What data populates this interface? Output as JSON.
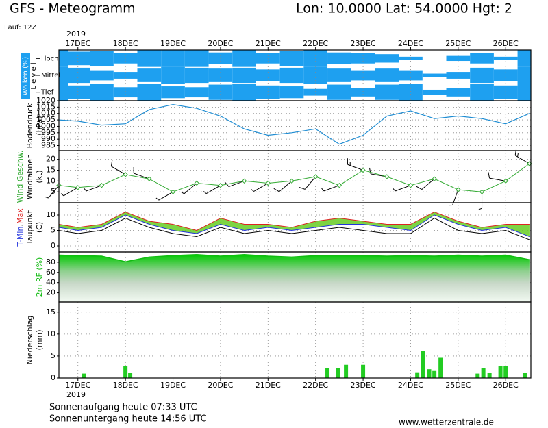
{
  "header": {
    "title": "GFS - Meteogramm",
    "location": "Lon: 10.0000 Lat: 54.0000 Hgt: 2",
    "run": "Lauf: 12Z",
    "year": "2019"
  },
  "footer": {
    "sunrise": "Sonnenaufgang heute 07:33 UTC",
    "sunset": "Sonnenuntergang heute 14:56 UTC",
    "url": "www.wetterzentrale.de"
  },
  "chart_data": [
    {
      "type": "cloud",
      "ylabel": "Wolken (%)",
      "level_label": "L e v e l",
      "x": [
        16.6,
        17,
        17.5,
        18,
        18.5,
        19,
        19.5,
        20,
        20.5,
        21,
        21.5,
        22,
        22.5,
        23,
        23.5,
        24,
        24.5,
        25,
        25.5,
        26,
        26.5
      ],
      "xlim": [
        16.6,
        26.53
      ],
      "xticks": [
        {
          "value": 17,
          "label": "17DEC"
        },
        {
          "value": 18,
          "label": "18DEC"
        },
        {
          "value": 19,
          "label": "19DEC"
        },
        {
          "value": 20,
          "label": "20DEC"
        },
        {
          "value": 21,
          "label": "21DEC"
        },
        {
          "value": 22,
          "label": "22DEC"
        },
        {
          "value": 23,
          "label": "23DEC"
        },
        {
          "value": 24,
          "label": "24DEC"
        },
        {
          "value": 25,
          "label": "25DEC"
        },
        {
          "value": 26,
          "label": "26DEC"
        }
      ],
      "ylim": [
        0,
        100
      ],
      "series": [
        {
          "name": "Hoch",
          "color": "#1ea0f0",
          "values": [
            100,
            80,
            90,
            60,
            100,
            100,
            100,
            70,
            100,
            60,
            90,
            100,
            70,
            60,
            50,
            20,
            0,
            30,
            60,
            20,
            100
          ]
        },
        {
          "name": "Mittel",
          "color": "#1ea0f0",
          "values": [
            100,
            90,
            60,
            40,
            80,
            100,
            90,
            80,
            90,
            70,
            90,
            100,
            80,
            60,
            80,
            60,
            20,
            40,
            90,
            70,
            100
          ]
        },
        {
          "name": "Tief",
          "color": "#1ea0f0",
          "values": [
            100,
            80,
            100,
            60,
            100,
            70,
            60,
            90,
            100,
            80,
            70,
            40,
            90,
            50,
            90,
            100,
            30,
            50,
            100,
            80,
            100
          ]
        }
      ]
    },
    {
      "type": "line",
      "ylabel": [
        "Bodendruck",
        "(hPa)"
      ],
      "color": "#1e8cd2",
      "x": [
        16.6,
        17,
        17.5,
        18,
        18.5,
        19,
        19.5,
        20,
        20.5,
        21,
        21.5,
        22,
        22.5,
        23,
        23.5,
        24,
        24.5,
        25,
        25.5,
        26,
        26.5
      ],
      "values": [
        1005,
        1004,
        1001,
        1002,
        1013,
        1017,
        1014,
        1008,
        998,
        993,
        995,
        998,
        986,
        993,
        1008,
        1012,
        1006,
        1008,
        1006,
        1002,
        1010
      ],
      "xlim": [
        16.6,
        26.53
      ],
      "xticks": [
        {
          "value": 17,
          "label": "17DEC"
        },
        {
          "value": 18,
          "label": "18DEC"
        },
        {
          "value": 19,
          "label": "19DEC"
        },
        {
          "value": 20,
          "label": "20DEC"
        },
        {
          "value": 21,
          "label": "21DEC"
        },
        {
          "value": 22,
          "label": "22DEC"
        },
        {
          "value": 23,
          "label": "23DEC"
        },
        {
          "value": 24,
          "label": "24DEC"
        },
        {
          "value": 25,
          "label": "25DEC"
        },
        {
          "value": 26,
          "label": "26DEC"
        }
      ],
      "ylim": [
        981,
        1020
      ],
      "yticks": [
        985,
        990,
        995,
        1000,
        1005,
        1010,
        1015,
        1020
      ],
      "grid": true
    },
    {
      "type": "wind",
      "ylabel": [
        "Wind Geschw.",
        "Windfahnen",
        "(kt)"
      ],
      "color": "#33aa33",
      "x": [
        16.6,
        17,
        17.5,
        18,
        18.5,
        19,
        19.5,
        20,
        20.5,
        21,
        21.5,
        22,
        22.5,
        23,
        23.5,
        24,
        24.5,
        25,
        25.5,
        26,
        26.5
      ],
      "values": [
        8,
        7,
        8,
        13,
        11,
        5,
        9,
        8,
        10,
        9,
        10,
        12,
        8,
        15,
        12,
        8,
        11,
        6,
        5,
        10,
        18
      ],
      "directions": [
        220,
        240,
        250,
        300,
        290,
        240,
        230,
        240,
        250,
        240,
        230,
        220,
        250,
        290,
        280,
        250,
        230,
        200,
        180,
        280,
        300
      ],
      "xlim": [
        16.6,
        26.53
      ],
      "xticks": [
        {
          "value": 17,
          "label": "17DEC"
        },
        {
          "value": 18,
          "label": "18DEC"
        },
        {
          "value": 19,
          "label": "19DEC"
        },
        {
          "value": 20,
          "label": "20DEC"
        },
        {
          "value": 21,
          "label": "21DEC"
        },
        {
          "value": 22,
          "label": "22DEC"
        },
        {
          "value": 23,
          "label": "23DEC"
        },
        {
          "value": 24,
          "label": "24DEC"
        },
        {
          "value": 25,
          "label": "25DEC"
        },
        {
          "value": 26,
          "label": "26DEC"
        }
      ],
      "ylim": [
        0,
        24
      ],
      "yticks": [
        5,
        10,
        15,
        20
      ],
      "grid": true
    },
    {
      "type": "temp",
      "ylabel_separator": ",",
      "ylabel": [
        "Taupunkt",
        "(C)"
      ],
      "fill": "#66cc22",
      "x": [
        16.6,
        17,
        17.5,
        18,
        18.5,
        19,
        19.5,
        20,
        20.5,
        21,
        21.5,
        22,
        22.5,
        23,
        23.5,
        24,
        24.5,
        25,
        25.5,
        26,
        26.5
      ],
      "series": [
        {
          "name": "Max",
          "color": "#dd2222",
          "values": [
            7,
            6,
            7,
            11,
            8,
            7,
            5,
            9,
            7,
            7,
            6,
            8,
            9,
            8,
            7,
            7,
            11,
            8,
            6,
            7,
            7
          ]
        },
        {
          "name": "T-Min",
          "color": "#2233dd",
          "values": [
            6,
            5,
            6,
            10,
            7,
            5,
            4,
            7,
            5,
            6,
            5,
            6,
            7,
            7,
            6,
            5,
            10,
            7,
            5,
            6,
            3
          ]
        },
        {
          "name": "Taupunkt",
          "color": "#000000",
          "values": [
            5,
            4,
            5,
            9,
            6,
            4,
            3,
            6,
            4,
            5,
            4,
            5,
            6,
            5,
            4,
            4,
            9,
            5,
            4,
            5,
            2
          ]
        }
      ],
      "xlim": [
        16.6,
        26.53
      ],
      "xticks": [
        {
          "value": 17,
          "label": "17DEC"
        },
        {
          "value": 18,
          "label": "18DEC"
        },
        {
          "value": 19,
          "label": "19DEC"
        },
        {
          "value": 20,
          "label": "20DEC"
        },
        {
          "value": 21,
          "label": "21DEC"
        },
        {
          "value": 22,
          "label": "22DEC"
        },
        {
          "value": 23,
          "label": "23DEC"
        },
        {
          "value": 24,
          "label": "24DEC"
        },
        {
          "value": 25,
          "label": "25DEC"
        },
        {
          "value": 26,
          "label": "26DEC"
        }
      ],
      "ylim": [
        -2,
        14
      ],
      "yticks": [
        0,
        5,
        10
      ],
      "grid": true
    },
    {
      "type": "area",
      "ylabel": [
        "2m RF (%)"
      ],
      "color": "#11bb11",
      "x": [
        16.6,
        17,
        17.5,
        18,
        18.5,
        19,
        19.5,
        20,
        20.5,
        21,
        21.5,
        22,
        22.5,
        23,
        23.5,
        24,
        24.5,
        25,
        25.5,
        26,
        26.5
      ],
      "values": [
        94,
        93,
        92,
        81,
        90,
        93,
        95,
        92,
        95,
        92,
        90,
        93,
        93,
        93,
        92,
        93,
        92,
        94,
        92,
        94,
        85
      ],
      "xlim": [
        16.6,
        26.53
      ],
      "xticks": [
        {
          "value": 17,
          "label": "17DEC"
        },
        {
          "value": 18,
          "label": "18DEC"
        },
        {
          "value": 19,
          "label": "19DEC"
        },
        {
          "value": 20,
          "label": "20DEC"
        },
        {
          "value": 21,
          "label": "21DEC"
        },
        {
          "value": 22,
          "label": "22DEC"
        },
        {
          "value": 23,
          "label": "23DEC"
        },
        {
          "value": 24,
          "label": "24DEC"
        },
        {
          "value": 25,
          "label": "25DEC"
        },
        {
          "value": 26,
          "label": "26DEC"
        }
      ],
      "ylim": [
        2,
        100
      ],
      "yticks": [
        20,
        40,
        60,
        80
      ],
      "grid": true
    },
    {
      "type": "bar",
      "ylabel": [
        "Niederschlag",
        "(mm)"
      ],
      "color": "#22cc22",
      "x": [
        17.12,
        18.0,
        18.1,
        22.25,
        22.47,
        22.64,
        23.0,
        24.14,
        24.26,
        24.39,
        24.5,
        24.63,
        25.41,
        25.53,
        25.66,
        25.89,
        26.0,
        26.4
      ],
      "values": [
        1,
        2.8,
        1.2,
        2.2,
        2.3,
        3,
        3,
        1.3,
        6.2,
        2,
        1.6,
        4.6,
        1,
        2.2,
        1.2,
        2.8,
        2.8,
        1.2
      ],
      "xlim": [
        16.6,
        26.53
      ],
      "xticks": [
        {
          "value": 17,
          "label": "17DEC"
        },
        {
          "value": 18,
          "label": "18DEC"
        },
        {
          "value": 19,
          "label": "19DEC"
        },
        {
          "value": 20,
          "label": "20DEC"
        },
        {
          "value": 21,
          "label": "21DEC"
        },
        {
          "value": 22,
          "label": "22DEC"
        },
        {
          "value": 23,
          "label": "23DEC"
        },
        {
          "value": 24,
          "label": "24DEC"
        },
        {
          "value": 25,
          "label": "25DEC"
        },
        {
          "value": 26,
          "label": "26DEC"
        }
      ],
      "ylim": [
        0,
        17.3
      ],
      "yticks": [
        0,
        5,
        10,
        15
      ],
      "grid": true
    }
  ]
}
